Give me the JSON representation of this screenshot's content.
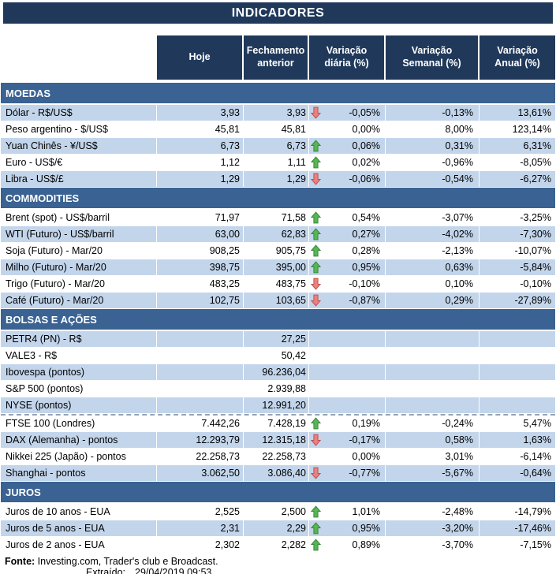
{
  "title": "INDICADORES",
  "columns": [
    "Hoje",
    "Fechamento anterior",
    "Variação diária (%)",
    "Variação Semanal (%)",
    "Variação Anual (%)"
  ],
  "colors": {
    "header_navy": "#20395a",
    "section_blue": "#3a6292",
    "row_shaded": "#c2d5eb",
    "arrow_up_fill": "#56b556",
    "arrow_up_stroke": "#35842f",
    "arrow_down_fill": "#e88181",
    "arrow_down_stroke": "#bf4b45"
  },
  "sections": [
    {
      "name": "MOEDAS",
      "first_shaded": true,
      "rows": [
        {
          "label": "Dólar - R$/US$",
          "hoje": "3,93",
          "fechamento": "3,93",
          "arrow": "down",
          "diaria": "-0,05%",
          "semanal": "-0,13%",
          "anual": "13,61%"
        },
        {
          "label": "Peso argentino - $/US$",
          "hoje": "45,81",
          "fechamento": "45,81",
          "arrow": "",
          "diaria": "0,00%",
          "semanal": "8,00%",
          "anual": "123,14%"
        },
        {
          "label": "Yuan Chinês - ¥/US$",
          "hoje": "6,73",
          "fechamento": "6,73",
          "arrow": "up",
          "diaria": "0,06%",
          "semanal": "0,31%",
          "anual": "6,31%"
        },
        {
          "label": "Euro - US$/€",
          "hoje": "1,12",
          "fechamento": "1,11",
          "arrow": "up",
          "diaria": "0,02%",
          "semanal": "-0,96%",
          "anual": "-8,05%"
        },
        {
          "label": "Libra - US$/£",
          "hoje": "1,29",
          "fechamento": "1,29",
          "arrow": "down",
          "diaria": "-0,06%",
          "semanal": "-0,54%",
          "anual": "-6,27%"
        }
      ]
    },
    {
      "name": "COMMODITIES",
      "first_shaded": false,
      "rows": [
        {
          "label": "Brent (spot) - US$/barril",
          "hoje": "71,97",
          "fechamento": "71,58",
          "arrow": "up",
          "diaria": "0,54%",
          "semanal": "-3,07%",
          "anual": "-3,25%"
        },
        {
          "label": "WTI (Futuro) - US$/barril",
          "hoje": "63,00",
          "fechamento": "62,83",
          "arrow": "up",
          "diaria": "0,27%",
          "semanal": "-4,02%",
          "anual": "-7,30%"
        },
        {
          "label": "Soja (Futuro) - Mar/20",
          "hoje": "908,25",
          "fechamento": "905,75",
          "arrow": "up",
          "diaria": "0,28%",
          "semanal": "-2,13%",
          "anual": "-10,07%"
        },
        {
          "label": "Milho (Futuro) - Mar/20",
          "hoje": "398,75",
          "fechamento": "395,00",
          "arrow": "up",
          "diaria": "0,95%",
          "semanal": "0,63%",
          "anual": "-5,84%"
        },
        {
          "label": "Trigo (Futuro) - Mar/20",
          "hoje": "483,25",
          "fechamento": "483,75",
          "arrow": "down",
          "diaria": "-0,10%",
          "semanal": "0,10%",
          "anual": "-0,10%"
        },
        {
          "label": "Café (Futuro) - Mar/20",
          "hoje": "102,75",
          "fechamento": "103,65",
          "arrow": "down",
          "diaria": "-0,87%",
          "semanal": "0,29%",
          "anual": "-27,89%"
        }
      ]
    },
    {
      "name": "BOLSAS E AÇÕES",
      "first_shaded": true,
      "rows": [
        {
          "label": "PETR4 (PN) - R$",
          "hoje": "",
          "fechamento": "27,25",
          "arrow": "",
          "diaria": "",
          "semanal": "",
          "anual": ""
        },
        {
          "label": "VALE3 - R$",
          "hoje": "",
          "fechamento": "50,42",
          "arrow": "",
          "diaria": "",
          "semanal": "",
          "anual": ""
        },
        {
          "label": "Ibovespa (pontos)",
          "hoje": "",
          "fechamento": "96.236,04",
          "arrow": "",
          "diaria": "",
          "semanal": "",
          "anual": ""
        },
        {
          "label": "S&P 500 (pontos)",
          "hoje": "",
          "fechamento": "2.939,88",
          "arrow": "",
          "diaria": "",
          "semanal": "",
          "anual": ""
        },
        {
          "label": "NYSE (pontos)",
          "hoje": "",
          "fechamento": "12.991,20",
          "arrow": "",
          "diaria": "",
          "semanal": "",
          "anual": ""
        },
        {
          "label": "FTSE 100 (Londres)",
          "hoje": "7.442,26",
          "fechamento": "7.428,19",
          "arrow": "up",
          "diaria": "0,19%",
          "semanal": "-0,24%",
          "anual": "5,47%",
          "page_break_before": true
        },
        {
          "label": "DAX (Alemanha) - pontos",
          "hoje": "12.293,79",
          "fechamento": "12.315,18",
          "arrow": "down",
          "diaria": "-0,17%",
          "semanal": "0,58%",
          "anual": "1,63%"
        },
        {
          "label": "Nikkei 225 (Japão) - pontos",
          "hoje": "22.258,73",
          "fechamento": "22.258,73",
          "arrow": "",
          "diaria": "0,00%",
          "semanal": "3,01%",
          "anual": "-6,14%"
        },
        {
          "label": "Shanghai - pontos",
          "hoje": "3.062,50",
          "fechamento": "3.086,40",
          "arrow": "down",
          "diaria": "-0,77%",
          "semanal": "-5,67%",
          "anual": "-0,64%"
        }
      ]
    },
    {
      "name": "JUROS",
      "first_shaded": false,
      "rows": [
        {
          "label": "Juros de 10 anos - EUA",
          "hoje": "2,525",
          "fechamento": "2,500",
          "arrow": "up",
          "diaria": "1,01%",
          "semanal": "-2,48%",
          "anual": "-14,79%"
        },
        {
          "label": "Juros de 5 anos - EUA",
          "hoje": "2,31",
          "fechamento": "2,29",
          "arrow": "up",
          "diaria": "0,95%",
          "semanal": "-3,20%",
          "anual": "-17,46%"
        },
        {
          "label": "Juros de 2 anos - EUA",
          "hoje": "2,302",
          "fechamento": "2,282",
          "arrow": "up",
          "diaria": "0,89%",
          "semanal": "-3,70%",
          "anual": "-7,15%"
        }
      ]
    }
  ],
  "footer": {
    "fonte_label": "Fonte:",
    "fonte_text": " Investing.com, Trader's club e Broadcast.",
    "extraido_label": "Extraído:",
    "extraido_value": "29/04/2019 09:53"
  }
}
